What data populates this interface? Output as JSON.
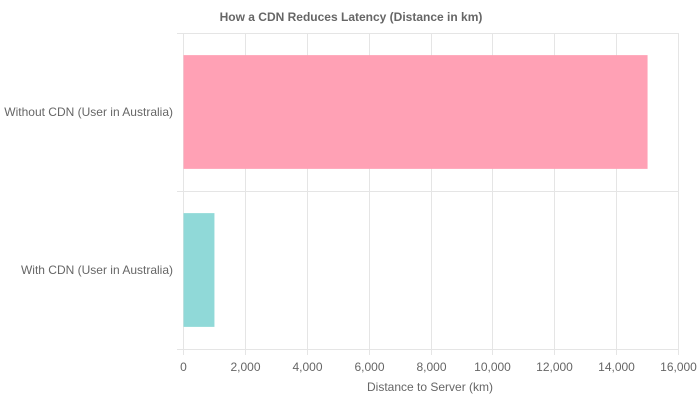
{
  "chart_data": {
    "type": "bar",
    "orientation": "horizontal",
    "title": "How a CDN Reduces Latency (Distance in km)",
    "xlabel": "Distance to Server (km)",
    "ylabel": "",
    "categories": [
      "Without CDN (User in Australia)",
      "With CDN (User in Australia)"
    ],
    "values": [
      15000,
      1000
    ],
    "colors": [
      "#ffa1b5",
      "#90d9d8"
    ],
    "xlim": [
      0,
      16000
    ],
    "x_ticks": [
      0,
      2000,
      4000,
      6000,
      8000,
      10000,
      12000,
      14000,
      16000
    ],
    "x_tick_labels": [
      "0",
      "2,000",
      "4,000",
      "6,000",
      "8,000",
      "10,000",
      "12,000",
      "14,000",
      "16,000"
    ],
    "grid": true,
    "legend": "none"
  }
}
